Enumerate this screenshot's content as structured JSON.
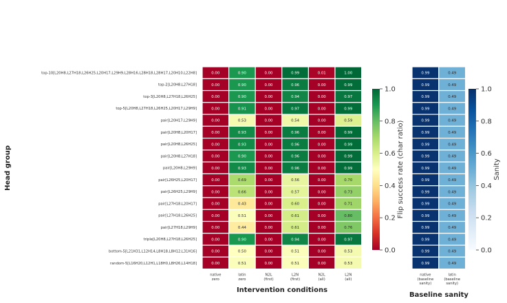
{
  "chart_data": [
    {
      "type": "heatmap",
      "xlabel": "Intervention conditions",
      "ylabel": "Head group",
      "colorbar_label": "Flip success rate (char ratio)",
      "colormap": "RdYlGn",
      "vlim": [
        0,
        1
      ],
      "colorbar_ticks": [
        "0.0",
        "0.2",
        "0.4",
        "0.6",
        "0.8",
        "1.0"
      ],
      "columns": [
        [
          "native",
          "zero"
        ],
        [
          "latin",
          "zero"
        ],
        [
          "N2L",
          "(first)"
        ],
        [
          "L2N",
          "(first)"
        ],
        [
          "N2L",
          "(all)"
        ],
        [
          "L2N",
          "(all)"
        ]
      ],
      "rows": [
        "top-10[L20H8,L27H18,L26H25,L20H17,L29H9,L28H16,L28H18,L28H17,L20H10,L22H8]",
        "top-2[L20H8,L27H18]",
        "top-3[L20H8,L27H18,L26H25]",
        "top-5[L20H8,L27H18,L26H25,L20H17,L29H9]",
        "pair[L20H17,L29H9]",
        "pair[L20H8,L20H17]",
        "pair[L20H8,L26H25]",
        "pair[L20H8,L27H18]",
        "pair[L20H8,L29H9]",
        "pair[L26H25,L20H17]",
        "pair[L26H25,L29H9]",
        "pair[L27H18,L20H17]",
        "pair[L27H18,L26H25]",
        "pair[L27H18,L29H9]",
        "triple[L20H8,L27H18,L26H25]",
        "bottom-5[L21H31,L12H14,L8H18,L8H12,L31H16]",
        "random-5[L16H20,L12H1,L18H0,L8H26,L14H18]"
      ],
      "values": [
        [
          0.0,
          0.9,
          0.0,
          0.99,
          0.01,
          1.0
        ],
        [
          0.0,
          0.9,
          0.0,
          0.96,
          0.0,
          0.99
        ],
        [
          0.0,
          0.9,
          0.0,
          0.94,
          0.0,
          0.97
        ],
        [
          0.0,
          0.91,
          0.0,
          0.97,
          0.0,
          0.99
        ],
        [
          0.0,
          0.53,
          0.0,
          0.54,
          0.0,
          0.59
        ],
        [
          0.0,
          0.93,
          0.0,
          0.96,
          0.0,
          0.99
        ],
        [
          0.0,
          0.93,
          0.0,
          0.96,
          0.0,
          0.99
        ],
        [
          0.0,
          0.9,
          0.0,
          0.96,
          0.0,
          0.99
        ],
        [
          0.0,
          0.93,
          0.0,
          0.96,
          0.0,
          0.99
        ],
        [
          0.0,
          0.69,
          0.0,
          0.56,
          0.0,
          0.7
        ],
        [
          0.0,
          0.66,
          0.0,
          0.57,
          0.0,
          0.73
        ],
        [
          0.0,
          0.43,
          0.0,
          0.6,
          0.0,
          0.71
        ],
        [
          0.0,
          0.51,
          0.0,
          0.61,
          0.0,
          0.8
        ],
        [
          0.0,
          0.44,
          0.0,
          0.61,
          0.0,
          0.76
        ],
        [
          0.0,
          0.9,
          0.0,
          0.94,
          0.0,
          0.97
        ],
        [
          0.0,
          0.5,
          0.0,
          0.51,
          0.0,
          0.53
        ],
        [
          0.0,
          0.51,
          0.0,
          0.51,
          0.0,
          0.53
        ]
      ]
    },
    {
      "type": "heatmap",
      "xlabel": "Baseline sanity",
      "colorbar_label": "Sanity",
      "colormap": "Blues",
      "vlim": [
        0,
        1
      ],
      "colorbar_ticks": [
        "0.0",
        "0.2",
        "0.4",
        "0.6",
        "0.8",
        "1.0"
      ],
      "columns": [
        [
          "native",
          "(baseline",
          "sanity)"
        ],
        [
          "latin",
          "(baseline",
          "sanity)"
        ]
      ],
      "values": [
        [
          0.99,
          0.49
        ],
        [
          0.99,
          0.49
        ],
        [
          0.99,
          0.49
        ],
        [
          0.99,
          0.49
        ],
        [
          0.99,
          0.49
        ],
        [
          0.99,
          0.49
        ],
        [
          0.99,
          0.49
        ],
        [
          0.99,
          0.49
        ],
        [
          0.99,
          0.49
        ],
        [
          0.99,
          0.49
        ],
        [
          0.99,
          0.49
        ],
        [
          0.99,
          0.49
        ],
        [
          0.99,
          0.49
        ],
        [
          0.99,
          0.49
        ],
        [
          0.99,
          0.49
        ],
        [
          0.99,
          0.49
        ],
        [
          0.99,
          0.49
        ]
      ]
    }
  ]
}
